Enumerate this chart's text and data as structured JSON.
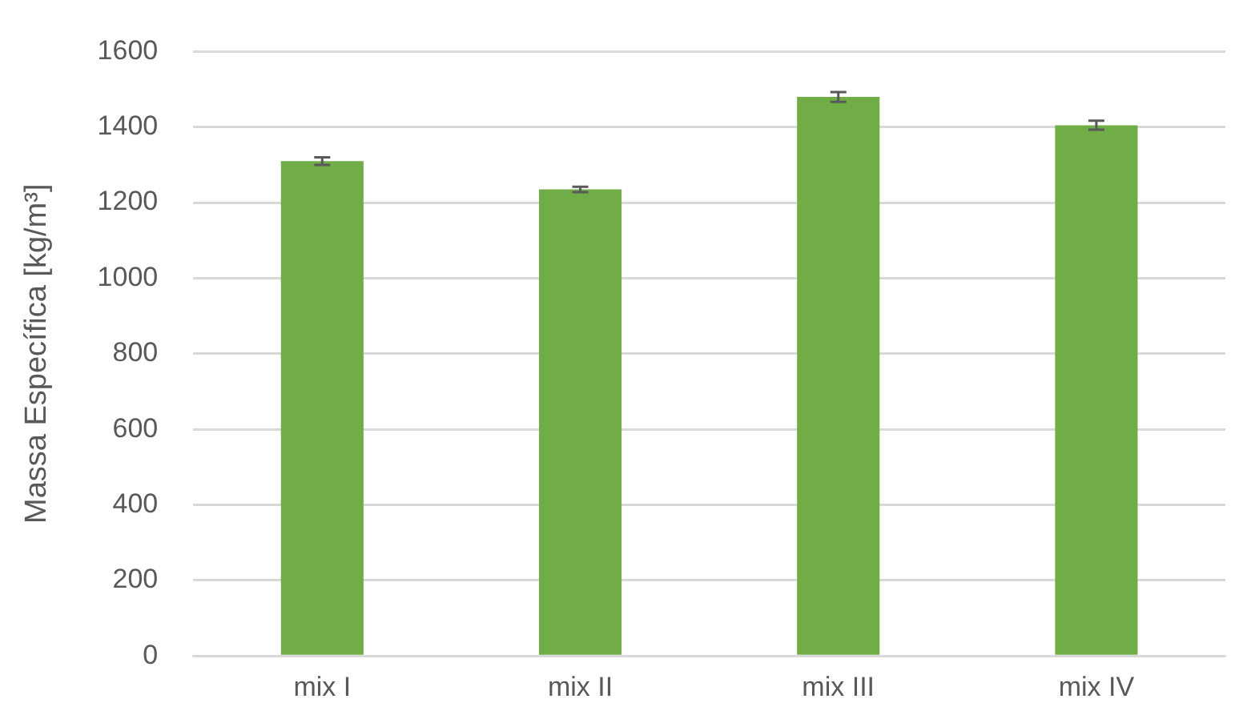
{
  "chart_data": {
    "type": "bar",
    "ylabel": "Massa Específica [kg/m³]",
    "categories": [
      "mix I",
      "mix II",
      "mix III",
      "mix IV"
    ],
    "values": [
      1310,
      1235,
      1480,
      1405
    ],
    "errors": [
      10,
      7,
      13,
      12
    ],
    "color": "#70ad47",
    "ylim": [
      0,
      1600
    ],
    "yticks": [
      0,
      200,
      400,
      600,
      800,
      1000,
      1200,
      1400,
      1600
    ],
    "grid": "y",
    "legend": false
  }
}
